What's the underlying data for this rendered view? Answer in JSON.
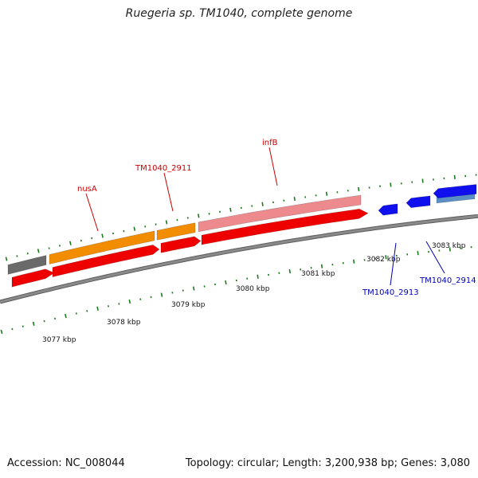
{
  "title": "Ruegeria sp. TM1040, complete genome",
  "footer": {
    "accession": "Accession: NC_008044",
    "summary": "Topology: circular; Length: 3,200,938 bp; Genes: 3,080"
  },
  "colors": {
    "backbone": "#8a8a8a",
    "tick": "#1d7a1d",
    "cds": "#ee0000",
    "gene_forward": "#f28c00",
    "gene_grey": "#6a6a6a",
    "gene_pink": "#ec8a8e",
    "cds_reverse": "#1010ee",
    "gene_reverse": "#5a8fc6",
    "label_forward": "#cc0000",
    "label_reverse": "#0000bb"
  },
  "scale_labels": [
    {
      "text": "3077 kbp",
      "kbp": 3077
    },
    {
      "text": "3078 kbp",
      "kbp": 3078
    },
    {
      "text": "3079 kbp",
      "kbp": 3079
    },
    {
      "text": "3080 kbp",
      "kbp": 3080
    },
    {
      "text": "3081 kbp",
      "kbp": 3081
    },
    {
      "text": "3082 kbp",
      "kbp": 3082
    },
    {
      "text": "3083 kbp",
      "kbp": 3083
    }
  ],
  "gene_labels": [
    {
      "name": "nusA",
      "strand": "forward"
    },
    {
      "name": "TM1040_2911",
      "strand": "forward"
    },
    {
      "name": "infB",
      "strand": "forward"
    },
    {
      "name": "TM1040_2913",
      "strand": "reverse"
    },
    {
      "name": "TM1040_2914",
      "strand": "reverse"
    }
  ]
}
